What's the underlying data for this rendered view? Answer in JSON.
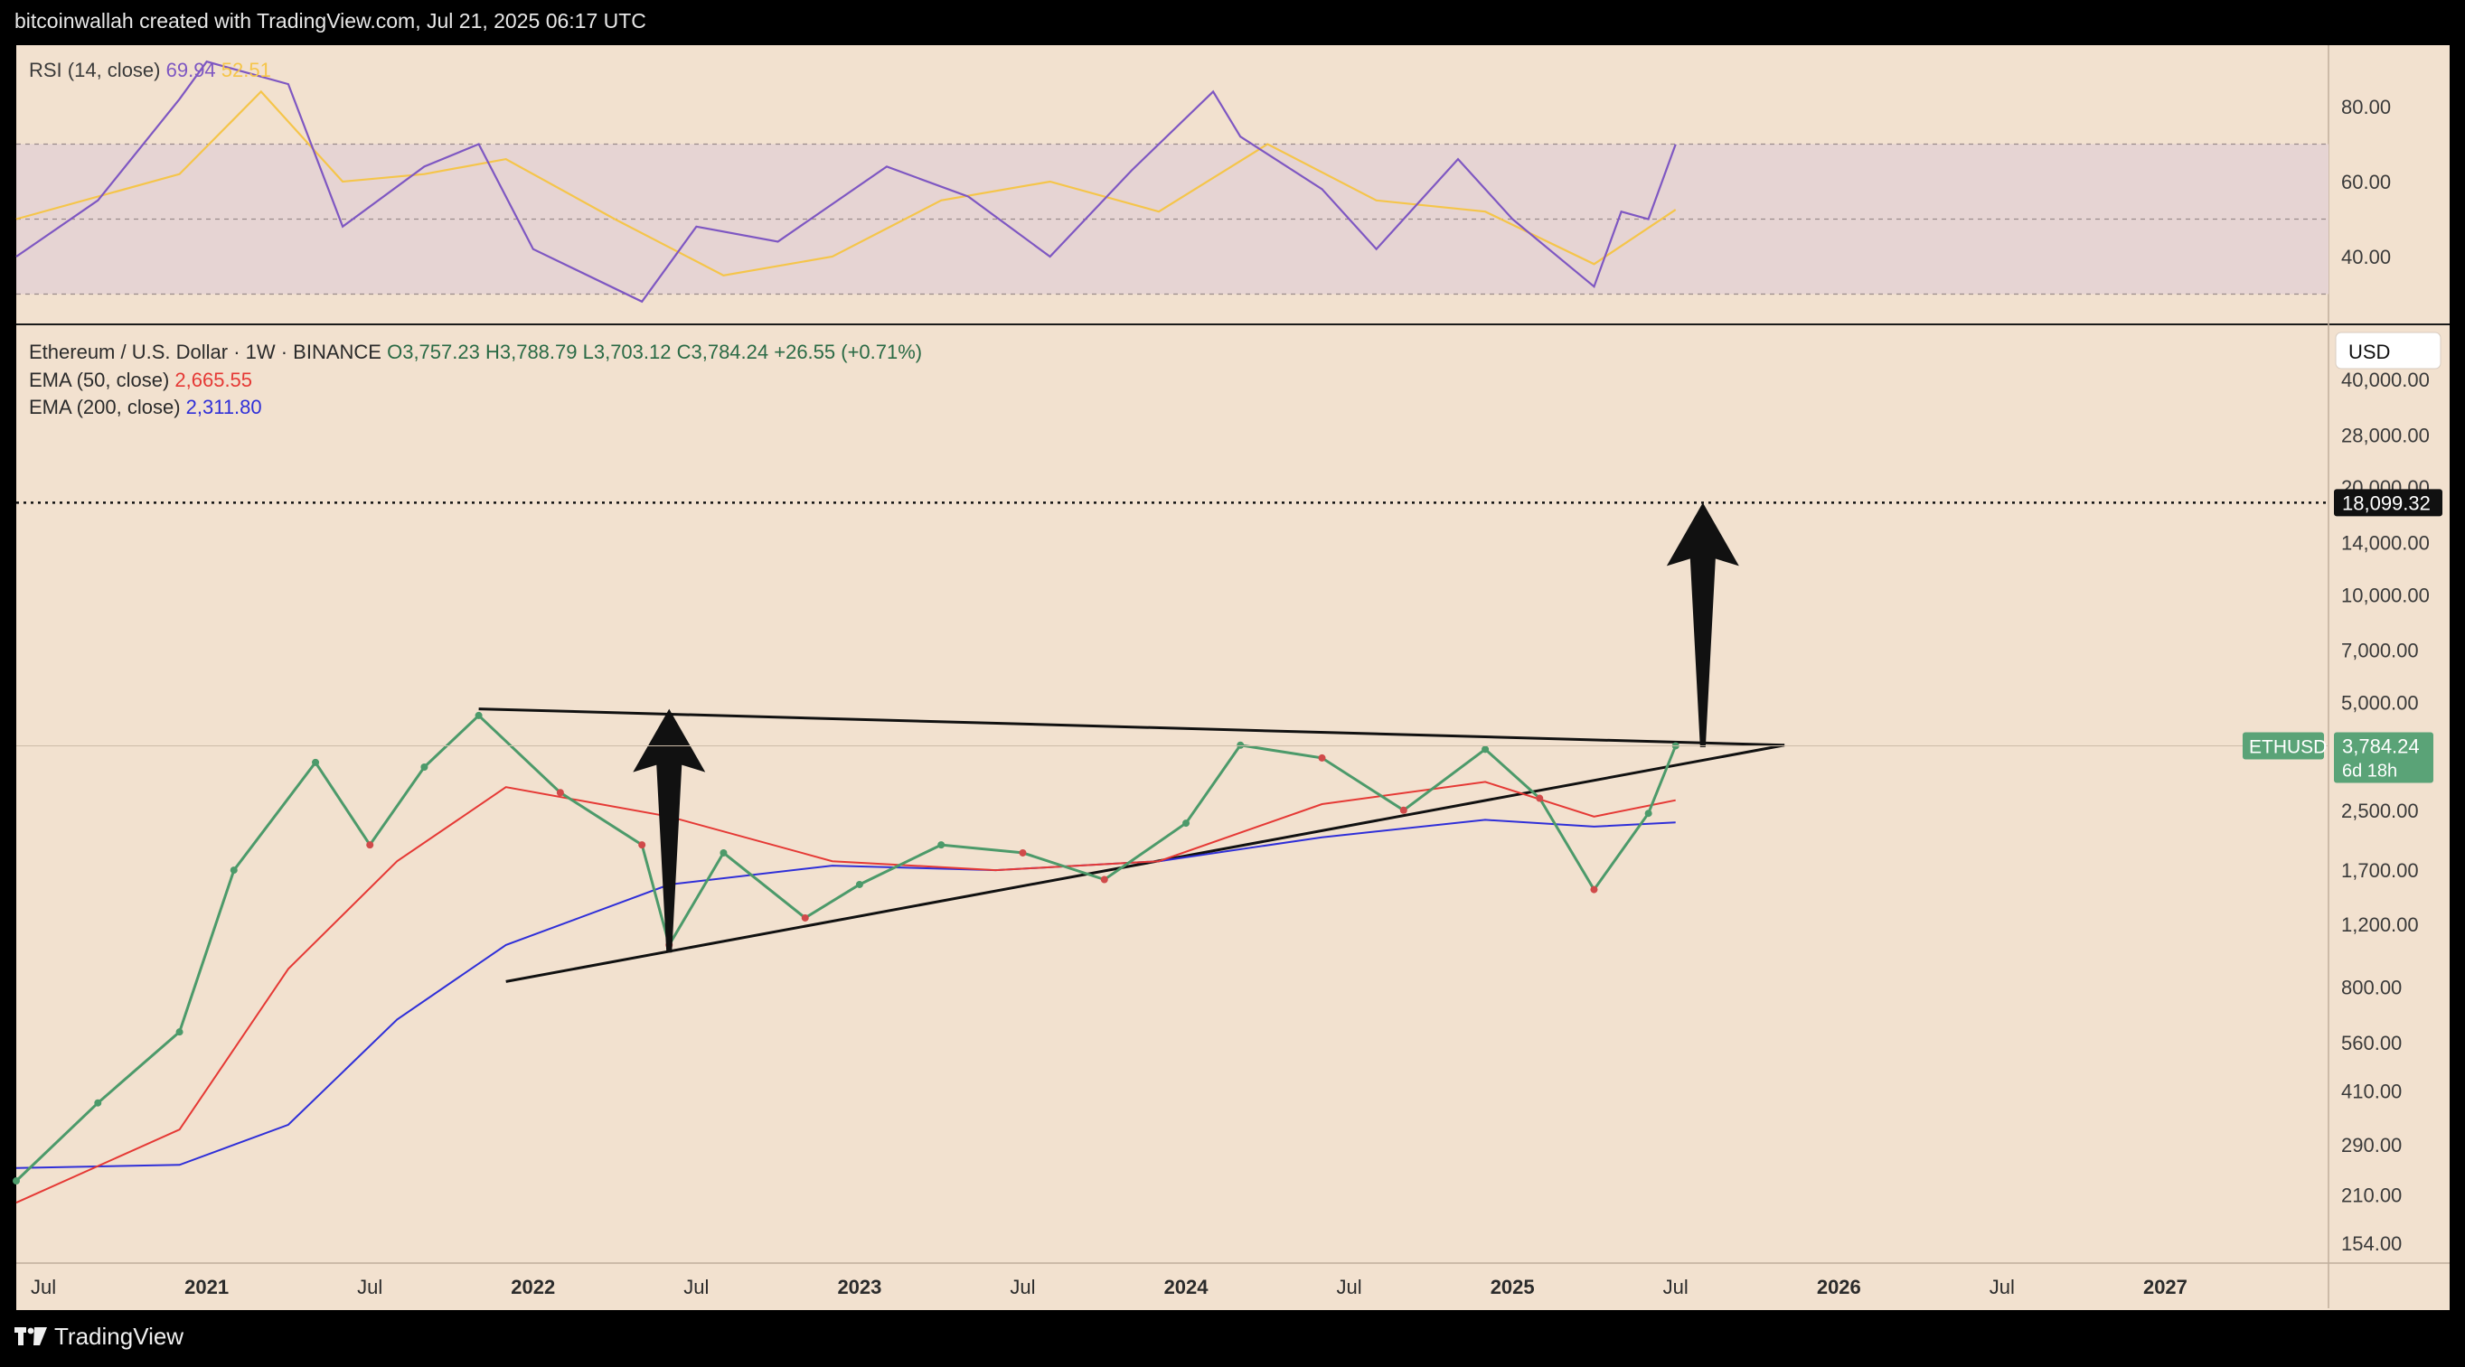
{
  "header": {
    "caption": "bitcoinwallah created with TradingView.com, Jul 21, 2025 06:17 UTC"
  },
  "footer": {
    "brand": "TradingView",
    "logo_icon": "tradingview-logo-icon"
  },
  "colors": {
    "background": "#f2e1cf",
    "rsi_line": "#7e57c2",
    "rsi_ma": "#f5c54a",
    "rsi_band": "#e6d4d3",
    "ema50": "#e53935",
    "ema200": "#2f2fd8",
    "candle_up": "#4c9a6a",
    "candle_down": "#d04a4a",
    "price_tag": "#5aa377",
    "target_tag": "#111111"
  },
  "rsi_panel": {
    "label": "RSI (14, close)",
    "value": "69.94",
    "ma_value": "52.51",
    "ticks": [
      "80.00",
      "60.00",
      "40.00"
    ]
  },
  "price_panel": {
    "symbol": "Ethereum / U.S. Dollar · 1W · BINANCE",
    "open": "O3,757.23",
    "high": "H3,788.79",
    "low": "L3,703.12",
    "close": "C3,784.24",
    "change": "+26.55 (+0.71%)",
    "ema50_label": "EMA (50, close)",
    "ema50_value": "2,665.55",
    "ema200_label": "EMA (200, close)",
    "ema200_value": "2,311.80",
    "currency": "USD",
    "ticks": [
      "40,000.00",
      "28,000.00",
      "20,000.00",
      "14,000.00",
      "10,000.00",
      "7,000.00",
      "5,000.00",
      "3,784.24",
      "2,500.00",
      "1,700.00",
      "1,200.00",
      "800.00",
      "560.00",
      "410.00",
      "290.00",
      "210.00",
      "154.00"
    ],
    "target_tag": "18,099.32",
    "symbol_tag": "ETHUSD",
    "last_price_tag": "3,784.24",
    "countdown": "6d 18h"
  },
  "x_axis": {
    "labels": [
      "Jul",
      "2021",
      "Jul",
      "2022",
      "Jul",
      "2023",
      "Jul",
      "2024",
      "Jul",
      "2025",
      "Jul",
      "2026",
      "Jul",
      "2027"
    ]
  },
  "chart_data": {
    "type": "line",
    "series": [
      {
        "name": "ETHUSD",
        "x": [
          "2020-06",
          "2020-09",
          "2020-12",
          "2021-02",
          "2021-05",
          "2021-07",
          "2021-09",
          "2021-11",
          "2022-02",
          "2022-05",
          "2022-06",
          "2022-08",
          "2022-11",
          "2023-01",
          "2023-04",
          "2023-07",
          "2023-10",
          "2024-01",
          "2024-03",
          "2024-06",
          "2024-09",
          "2024-12",
          "2025-02",
          "2025-04",
          "2025-06",
          "2025-07"
        ],
        "values": [
          230,
          380,
          600,
          1700,
          3400,
          2000,
          3300,
          4600,
          2800,
          2000,
          1050,
          1900,
          1250,
          1550,
          2000,
          1900,
          1600,
          2300,
          3800,
          3500,
          2500,
          3700,
          2700,
          1500,
          2450,
          3784
        ]
      },
      {
        "name": "EMA (50, close)",
        "x": [
          "2020-06",
          "2020-12",
          "2021-04",
          "2021-08",
          "2021-12",
          "2022-06",
          "2022-12",
          "2023-06",
          "2023-12",
          "2024-06",
          "2024-12",
          "2025-04",
          "2025-07"
        ],
        "values": [
          200,
          320,
          900,
          1800,
          2900,
          2400,
          1800,
          1700,
          1800,
          2600,
          3000,
          2400,
          2666
        ]
      },
      {
        "name": "EMA (200, close)",
        "x": [
          "2020-06",
          "2020-12",
          "2021-04",
          "2021-08",
          "2021-12",
          "2022-06",
          "2022-12",
          "2023-06",
          "2023-12",
          "2024-06",
          "2024-12",
          "2025-04",
          "2025-07"
        ],
        "values": [
          250,
          255,
          330,
          650,
          1050,
          1550,
          1750,
          1700,
          1800,
          2100,
          2350,
          2250,
          2312
        ]
      },
      {
        "name": "RSI (14, close)",
        "x": [
          "2020-06",
          "2020-09",
          "2020-12",
          "2021-01",
          "2021-04",
          "2021-06",
          "2021-09",
          "2021-11",
          "2022-01",
          "2022-05",
          "2022-07",
          "2022-10",
          "2023-02",
          "2023-05",
          "2023-08",
          "2023-11",
          "2024-02",
          "2024-03",
          "2024-06",
          "2024-08",
          "2024-11",
          "2025-01",
          "2025-04",
          "2025-05",
          "2025-06",
          "2025-07"
        ],
        "values": [
          40,
          55,
          82,
          92,
          86,
          48,
          64,
          70,
          42,
          28,
          48,
          44,
          64,
          56,
          40,
          63,
          84,
          72,
          58,
          42,
          66,
          50,
          32,
          52,
          50,
          69.94
        ]
      },
      {
        "name": "",
        "x": [
          "2020-06",
          "2020-12",
          "2021-03",
          "2021-06",
          "2021-09",
          "2021-12",
          "2022-04",
          "2022-08",
          "2022-12",
          "2023-04",
          "2023-08",
          "2023-12",
          "2024-04",
          "2024-08",
          "2024-12",
          "2025-04",
          "2025-07"
        ],
        "values": [
          50,
          62,
          84,
          60,
          62,
          66,
          50,
          35,
          40,
          55,
          60,
          52,
          70,
          55,
          52,
          38,
          52.51
        ]
      }
    ],
    "annotations": {
      "target_level": 18099.32,
      "triangle_upper_line": [
        [
          "2021-11",
          4800
        ],
        [
          "2025-11",
          3800
        ]
      ],
      "triangle_lower_line": [
        [
          "2021-12",
          830
        ],
        [
          "2025-11",
          3800
        ]
      ]
    },
    "rsi_levels": [
      70,
      50,
      30
    ],
    "price_scale": "log"
  }
}
